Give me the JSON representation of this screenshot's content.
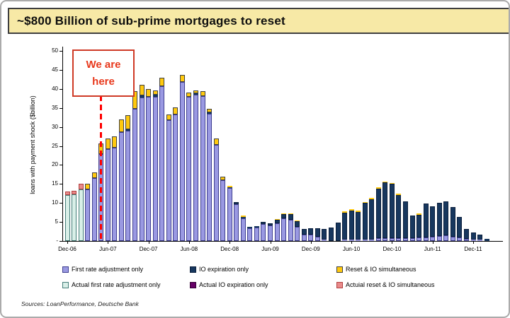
{
  "title": "~$800 Billion of sub-prime mortgages to reset",
  "annotation": {
    "line1": "We are",
    "line2": "here"
  },
  "source": "Sources: LoanPerformance, Deutsche Bank",
  "colors": {
    "title_bg": "#f7e9a6",
    "title_border": "#3f3f3f",
    "annotation_text": "#e8391d",
    "annotation_border": "#cf3a26",
    "dash_red": "#ff0000",
    "axis": "#000000"
  },
  "legend": {
    "items": [
      {
        "label": "First rate adjustment only",
        "color": "#9a99e2",
        "border": "#3f3f8f"
      },
      {
        "label": "IO expiration only",
        "color": "#17375e",
        "border": "#0b1f3d"
      },
      {
        "label": "Reset & IO simultaneous",
        "color": "#ffc90e",
        "border": "#404040"
      },
      {
        "label": "Actual first rate adjustment only",
        "color": "#d9efe8",
        "border": "#447c78"
      },
      {
        "label": "Actual IO expiration only",
        "color": "#660066",
        "border": "#330033"
      },
      {
        "label": "Actuial reset & IO simultaneous",
        "color": "#e98a8a",
        "border": "#b04040"
      }
    ]
  },
  "chart_data": {
    "type": "bar",
    "stacked": true,
    "title": "~$800 Billion of sub-prime mortgages to reset",
    "xlabel": "",
    "ylabel": "loans with payment shock ($billion)",
    "ylim": [
      0,
      50
    ],
    "y_tick_interval": 5,
    "y_tick_labels": [
      "-",
      "5",
      "10",
      "15",
      "20",
      "25",
      "30",
      "35",
      "40",
      "45",
      "50"
    ],
    "x_tick_labels": [
      "Dec-06",
      "Jun-07",
      "Dec-07",
      "Jun-08",
      "Dec-08",
      "Jun-09",
      "Dec-09",
      "Jun-10",
      "Dec-10",
      "Jun-11",
      "Dec-11"
    ],
    "x_tick_indices": [
      0,
      6,
      12,
      18,
      24,
      30,
      36,
      42,
      48,
      54,
      60
    ],
    "annotation_x_index": 5,
    "grid": false,
    "legend_position": "bottom",
    "categories": [
      "Dec-06",
      "Jan-07",
      "Feb-07",
      "Mar-07",
      "Apr-07",
      "May-07",
      "Jun-07",
      "Jul-07",
      "Aug-07",
      "Sep-07",
      "Oct-07",
      "Nov-07",
      "Dec-07",
      "Jan-08",
      "Feb-08",
      "Mar-08",
      "Apr-08",
      "May-08",
      "Jun-08",
      "Jul-08",
      "Aug-08",
      "Sep-08",
      "Oct-08",
      "Nov-08",
      "Dec-08",
      "Jan-09",
      "Feb-09",
      "Mar-09",
      "Apr-09",
      "May-09",
      "Jun-09",
      "Jul-09",
      "Aug-09",
      "Sep-09",
      "Oct-09",
      "Nov-09",
      "Dec-09",
      "Jan-10",
      "Feb-10",
      "Mar-10",
      "Apr-10",
      "May-10",
      "Jun-10",
      "Jul-10",
      "Aug-10",
      "Sep-10",
      "Oct-10",
      "Nov-10",
      "Dec-10",
      "Jan-11",
      "Feb-11",
      "Mar-11",
      "Apr-11",
      "May-11",
      "Jun-11",
      "Jul-11",
      "Aug-11",
      "Sep-11",
      "Oct-11",
      "Nov-11",
      "Dec-11",
      "Jan-12",
      "Feb-12"
    ],
    "stack_order": [
      "actual_first_rate",
      "first_rate",
      "io_expiration",
      "reset_io",
      "actual_reset_io",
      "actual_io_expiration"
    ],
    "series": {
      "actual_first_rate": {
        "name": "Actual first rate adjustment only",
        "color": "#d9efe8",
        "border": "#447c78",
        "values": [
          12,
          12.2,
          13.5,
          0,
          0,
          0,
          0,
          0,
          0,
          0,
          0,
          0,
          0,
          0,
          0,
          0,
          0,
          0,
          0,
          0,
          0,
          0,
          0,
          0,
          0,
          0,
          0,
          0,
          0,
          0,
          0,
          0,
          0,
          0,
          0,
          0,
          0,
          0,
          0,
          0,
          0,
          0,
          0,
          0,
          0,
          0,
          0,
          0,
          0,
          0,
          0,
          0,
          0,
          0,
          0,
          0,
          0,
          0,
          0,
          0,
          0,
          0,
          0
        ]
      },
      "first_rate": {
        "name": "First rate adjustment only",
        "color": "#9a99e2",
        "border": "#3f3f8f",
        "values": [
          0,
          0,
          0,
          13.6,
          16.5,
          22.8,
          24.2,
          24.6,
          28.6,
          29,
          34.7,
          37.8,
          38,
          38,
          40.7,
          31.7,
          33.3,
          41.9,
          37.9,
          38.4,
          38.1,
          33.5,
          25.3,
          15.9,
          13.9,
          9.6,
          6,
          3.4,
          3.5,
          4.5,
          4.1,
          4.7,
          6,
          5.5,
          3.8,
          1.7,
          1.6,
          1.2,
          0.3,
          0,
          0,
          0.3,
          0.3,
          0.3,
          0.4,
          0.4,
          0.7,
          0.8,
          0.8,
          0.8,
          0.8,
          0.8,
          0.9,
          1,
          1.2,
          1.3,
          1.4,
          1.2,
          1,
          0.6,
          0.4,
          0.3,
          0
        ]
      },
      "io_expiration": {
        "name": "IO expiration only",
        "color": "#17375e",
        "border": "#0b1f3d",
        "values": [
          0,
          0,
          0,
          0,
          0,
          0,
          0,
          0,
          0,
          0.3,
          0,
          0.4,
          0,
          0.5,
          0,
          0,
          0,
          0,
          0,
          0.4,
          0,
          0.3,
          0,
          0,
          0.3,
          0.7,
          0.4,
          0.4,
          0.4,
          0.6,
          0.6,
          0.8,
          1,
          1.5,
          1.4,
          1.5,
          1.7,
          2.1,
          2.9,
          3.6,
          4.9,
          7.2,
          7.7,
          7.4,
          9.6,
          10.6,
          13.1,
          14.6,
          14.2,
          11.3,
          9.6,
          5.8,
          6,
          8.8,
          8,
          8.7,
          9,
          7.8,
          5.3,
          2.5,
          1.9,
          1.3,
          0.5
        ]
      },
      "reset_io": {
        "name": "Reset & IO simultaneous",
        "color": "#ffc90e",
        "border": "#404040",
        "values": [
          0,
          0,
          0,
          1.4,
          1.5,
          2.8,
          2.8,
          2.9,
          3.4,
          3.7,
          4.7,
          2.8,
          2,
          1.1,
          2.2,
          1.6,
          1.8,
          1.7,
          1.2,
          0.8,
          1.3,
          1,
          1.7,
          1.1,
          0.3,
          0,
          0.3,
          0,
          0,
          0,
          0,
          0.2,
          0.3,
          0.2,
          0.2,
          0,
          0,
          0,
          0,
          0,
          0,
          0.2,
          0.3,
          0.2,
          0.3,
          0.2,
          0.2,
          0.2,
          0.2,
          0.2,
          0,
          0,
          0.2,
          0,
          0,
          0,
          0,
          0,
          0,
          0,
          0,
          0,
          0
        ]
      },
      "actual_reset_io": {
        "name": "Actuial reset & IO simultaneous",
        "color": "#e98a8a",
        "border": "#b04040",
        "values": [
          1,
          1,
          1.5,
          0,
          0,
          0,
          0,
          0,
          0,
          0,
          0,
          0,
          0,
          0,
          0,
          0,
          0,
          0,
          0,
          0,
          0,
          0,
          0,
          0,
          0,
          0,
          0,
          0,
          0,
          0,
          0,
          0,
          0,
          0,
          0,
          0,
          0,
          0,
          0,
          0,
          0,
          0,
          0,
          0,
          0,
          0,
          0,
          0,
          0,
          0,
          0,
          0,
          0,
          0,
          0,
          0,
          0,
          0,
          0,
          0,
          0,
          0,
          0
        ]
      },
      "actual_io_expiration": {
        "name": "Actual IO expiration only",
        "color": "#660066",
        "border": "#330033",
        "values": [
          0,
          0,
          0,
          0,
          0,
          0,
          0,
          0,
          0,
          0,
          0,
          0,
          0,
          0,
          0,
          0,
          0,
          0,
          0,
          0,
          0,
          0,
          0,
          0,
          0,
          0,
          0,
          0,
          0,
          0,
          0,
          0,
          0,
          0,
          0,
          0,
          0,
          0,
          0,
          0,
          0,
          0,
          0,
          0,
          0,
          0,
          0,
          0,
          0,
          0,
          0,
          0,
          0,
          0,
          0,
          0,
          0,
          0,
          0,
          0,
          0,
          0,
          0
        ]
      }
    }
  }
}
